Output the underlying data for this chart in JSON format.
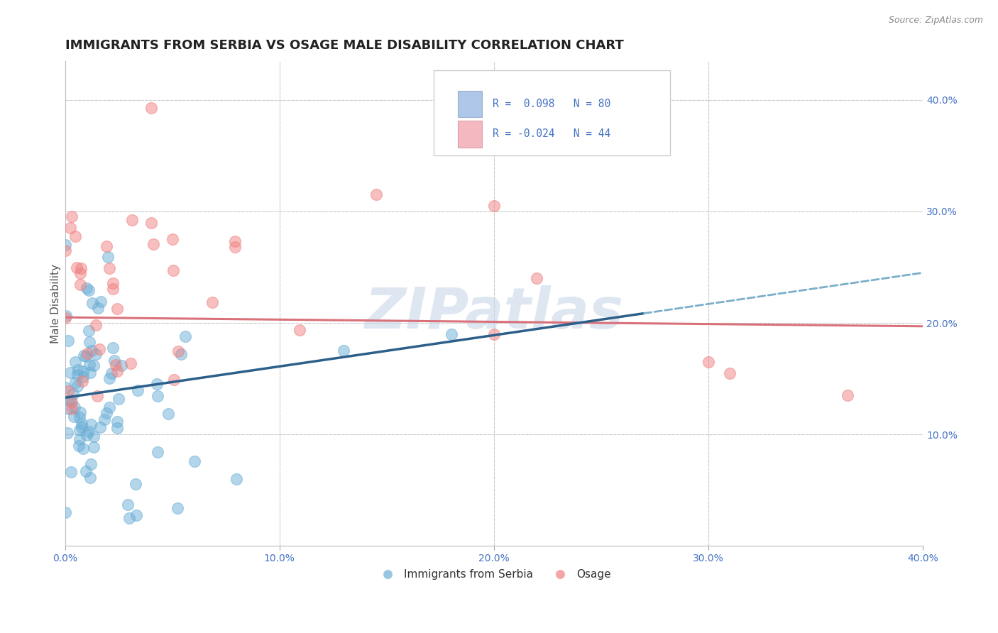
{
  "title": "IMMIGRANTS FROM SERBIA VS OSAGE MALE DISABILITY CORRELATION CHART",
  "source_text": "Source: ZipAtlas.com",
  "ylabel": "Male Disability",
  "xlim": [
    0.0,
    0.4
  ],
  "ylim": [
    0.0,
    0.435
  ],
  "xticks": [
    0.0,
    0.1,
    0.2,
    0.3,
    0.4
  ],
  "xtick_labels": [
    "0.0%",
    "10.0%",
    "20.0%",
    "30.0%",
    "40.0%"
  ],
  "yticks": [
    0.1,
    0.2,
    0.3,
    0.4
  ],
  "ytick_labels": [
    "10.0%",
    "20.0%",
    "30.0%",
    "40.0%"
  ],
  "legend_r1": "R =  0.098",
  "legend_n1": "N = 80",
  "legend_r2": "R = -0.024",
  "legend_n2": "N = 44",
  "blue_n": 80,
  "pink_n": 44,
  "dot_color_blue": "#6aaed6",
  "dot_color_pink": "#f08080",
  "legend_sq_blue": "#aec6e8",
  "legend_sq_pink": "#f4b8c1",
  "line_color_blue_solid": "#2c5f8a",
  "line_color_blue_dash": "#7aafc8",
  "line_color_pink": "#d9717a",
  "watermark": "ZIPatlas",
  "watermark_color": "#c8d8e8",
  "background_color": "#ffffff",
  "grid_color": "#cccccc",
  "title_fontsize": 13,
  "axis_label_fontsize": 11,
  "tick_fontsize": 10,
  "tick_color": "#4472c4",
  "blue_line_x0": 0.0,
  "blue_line_y0": 0.133,
  "blue_line_x_solid_end": 0.27,
  "blue_line_y_solid_end": 0.175,
  "blue_line_x1": 0.4,
  "blue_line_y1": 0.245,
  "pink_line_x0": 0.0,
  "pink_line_y0": 0.205,
  "pink_line_x1": 0.4,
  "pink_line_y1": 0.197
}
